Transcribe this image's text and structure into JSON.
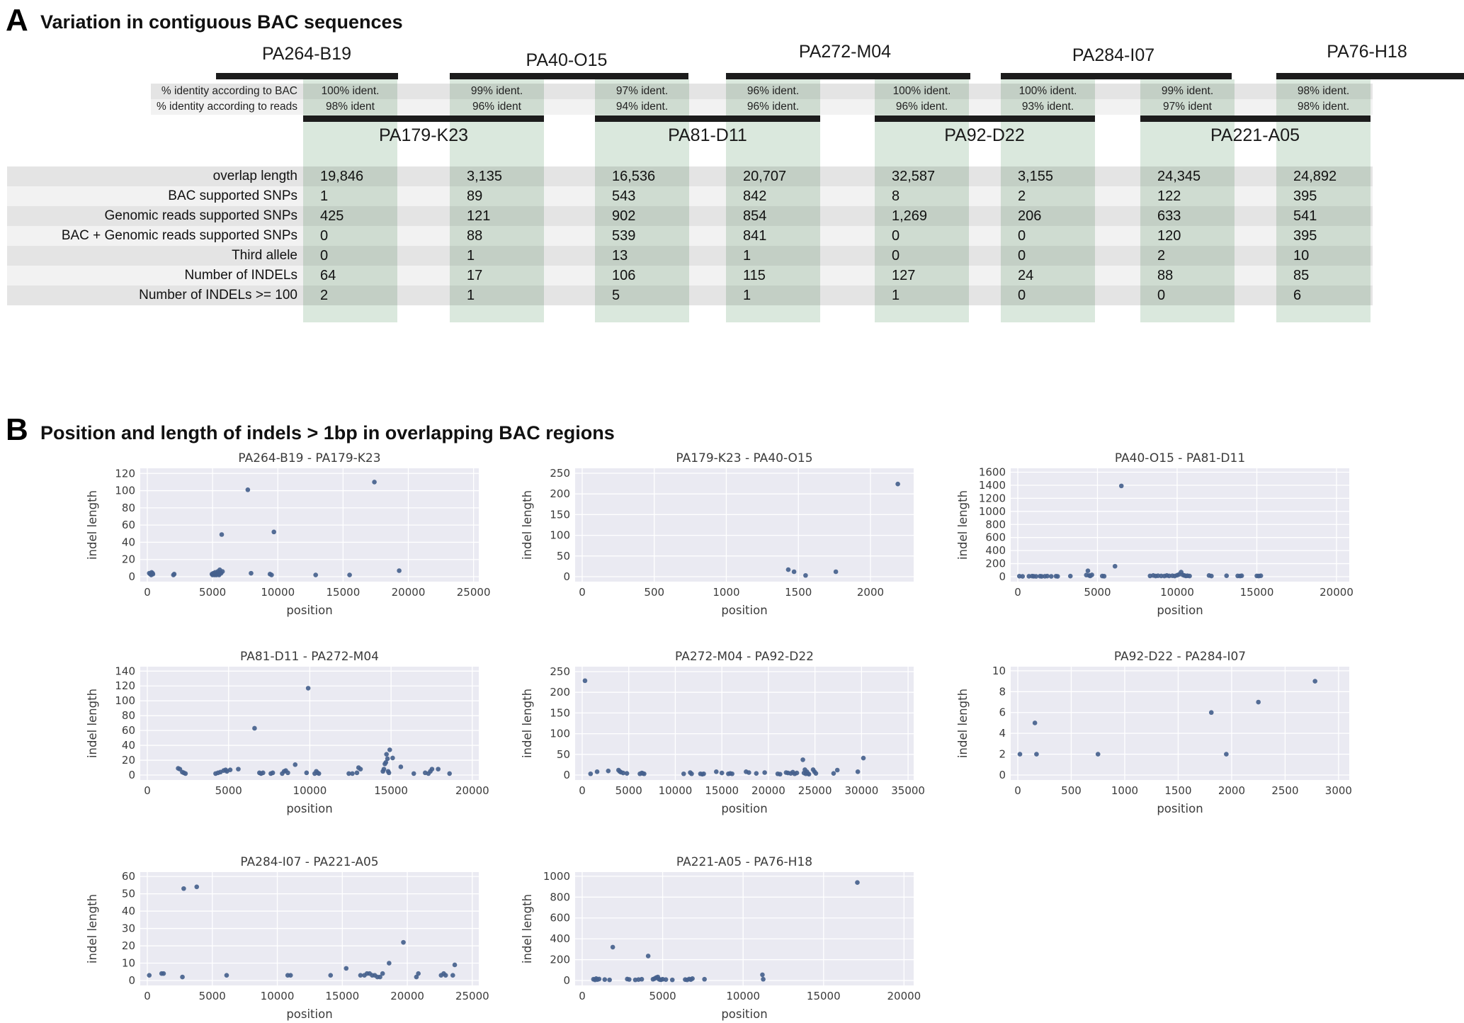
{
  "panelA": {
    "label": "A",
    "title": "Variation in contiguous BAC sequences",
    "top_bacs": [
      "PA264-B19",
      "PA40-O15",
      "PA272-M04",
      "PA284-I07",
      "PA76-H18"
    ],
    "bottom_bacs": [
      "PA179-K23",
      "PA81-D11",
      "PA92-D22",
      "PA221-A05"
    ],
    "identity_rows": [
      {
        "label": "% identity according to BAC",
        "values": [
          "100% ident.",
          "99% ident.",
          "97% ident.",
          "96% ident.",
          "100% ident.",
          "100% ident.",
          "99% ident.",
          "98% ident."
        ]
      },
      {
        "label": "% identity according to reads",
        "values": [
          "98% ident",
          "96% ident",
          "94% ident.",
          "96% ident.",
          "96% ident.",
          "93% ident.",
          "97% ident",
          "98% ident."
        ]
      }
    ],
    "data_rows": [
      {
        "label": "overlap length",
        "values": [
          "19,846",
          "3,135",
          "16,536",
          "20,707",
          "32,587",
          "3,155",
          "24,345",
          "24,892"
        ]
      },
      {
        "label": "BAC supported SNPs",
        "values": [
          "1",
          "89",
          "543",
          "842",
          "8",
          "2",
          "122",
          "395"
        ]
      },
      {
        "label": "Genomic reads supported SNPs",
        "values": [
          "425",
          "121",
          "902",
          "854",
          "1,269",
          "206",
          "633",
          "541"
        ]
      },
      {
        "label": "BAC + Genomic reads supported SNPs",
        "values": [
          "0",
          "88",
          "539",
          "841",
          "0",
          "0",
          "120",
          "395"
        ]
      },
      {
        "label": "Third allele",
        "values": [
          "0",
          "1",
          "13",
          "1",
          "0",
          "0",
          "2",
          "10"
        ]
      },
      {
        "label": "Number of INDELs",
        "values": [
          "64",
          "17",
          "106",
          "115",
          "127",
          "24",
          "88",
          "85"
        ]
      },
      {
        "label": "Number of INDELs >= 100",
        "values": [
          "2",
          "1",
          "5",
          "1",
          "1",
          "0",
          "0",
          "6"
        ]
      }
    ],
    "colors": {
      "bar": "#1c1c1c",
      "band_dark": "#e4e4e4",
      "band_light": "#f2f2f2",
      "overlap_green": "#dfeae0"
    }
  },
  "panelB": {
    "label": "B",
    "title": "Position and length of indels > 1bp in overlapping BAC regions",
    "style": {
      "plot_bg": "#eaeaf2",
      "grid": "#ffffff",
      "point": "#45618d",
      "text": "#3b3b3b"
    }
  },
  "chart_data": [
    {
      "type": "scatter",
      "title": "PA264-B19 - PA179-K23",
      "xlabel": "position",
      "ylabel": "indel length",
      "xticks": [
        0,
        5000,
        10000,
        15000,
        20000,
        25000
      ],
      "yticks": [
        0,
        20,
        40,
        60,
        80,
        100,
        120
      ],
      "xmax": 25400,
      "ymax": 126,
      "points": [
        [
          150,
          4
        ],
        [
          230,
          3
        ],
        [
          300,
          2
        ],
        [
          330,
          5
        ],
        [
          400,
          4
        ],
        [
          430,
          3
        ],
        [
          2000,
          2
        ],
        [
          2060,
          3
        ],
        [
          4950,
          3
        ],
        [
          5000,
          2
        ],
        [
          5060,
          4
        ],
        [
          5100,
          3
        ],
        [
          5160,
          2
        ],
        [
          5200,
          5
        ],
        [
          5260,
          3
        ],
        [
          5300,
          2
        ],
        [
          5360,
          4
        ],
        [
          5400,
          6
        ],
        [
          5460,
          3
        ],
        [
          5500,
          2
        ],
        [
          5550,
          8
        ],
        [
          5600,
          5
        ],
        [
          5650,
          4
        ],
        [
          5700,
          49
        ],
        [
          5760,
          6
        ],
        [
          7700,
          101
        ],
        [
          7950,
          4
        ],
        [
          9400,
          3
        ],
        [
          9520,
          2
        ],
        [
          9700,
          52
        ],
        [
          12900,
          2
        ],
        [
          15500,
          2
        ],
        [
          17400,
          110
        ],
        [
          19300,
          7
        ]
      ]
    },
    {
      "type": "scatter",
      "title": "PA179-K23 - PA40-O15",
      "xlabel": "position",
      "ylabel": "indel length",
      "xticks": [
        0,
        500,
        1000,
        1500,
        2000
      ],
      "yticks": [
        0,
        50,
        100,
        150,
        200,
        250
      ],
      "xmax": 2300,
      "ymax": 262,
      "points": [
        [
          1430,
          17
        ],
        [
          1470,
          12
        ],
        [
          1550,
          3
        ],
        [
          1760,
          12
        ],
        [
          2190,
          224
        ]
      ]
    },
    {
      "type": "scatter",
      "title": "PA40-O15 - PA81-D11",
      "xlabel": "position",
      "ylabel": "indel length",
      "xticks": [
        0,
        5000,
        10000,
        15000,
        20000
      ],
      "yticks": [
        0,
        200,
        400,
        600,
        800,
        1000,
        1200,
        1400,
        1600
      ],
      "xmax": 20800,
      "ymax": 1660,
      "points": [
        [
          100,
          8
        ],
        [
          300,
          5
        ],
        [
          700,
          6
        ],
        [
          900,
          9
        ],
        [
          1000,
          6
        ],
        [
          1150,
          5
        ],
        [
          1400,
          8
        ],
        [
          1500,
          5
        ],
        [
          1700,
          6
        ],
        [
          1850,
          9
        ],
        [
          2100,
          5
        ],
        [
          2400,
          8
        ],
        [
          2500,
          5
        ],
        [
          3300,
          9
        ],
        [
          4300,
          25
        ],
        [
          4400,
          90
        ],
        [
          4480,
          18
        ],
        [
          4550,
          12
        ],
        [
          4650,
          28
        ],
        [
          5300,
          10
        ],
        [
          5420,
          7
        ],
        [
          6100,
          160
        ],
        [
          6500,
          1390
        ],
        [
          8300,
          12
        ],
        [
          8500,
          18
        ],
        [
          8650,
          10
        ],
        [
          8800,
          14
        ],
        [
          9000,
          12
        ],
        [
          9200,
          10
        ],
        [
          9350,
          18
        ],
        [
          9500,
          12
        ],
        [
          9700,
          14
        ],
        [
          9850,
          10
        ],
        [
          10000,
          22
        ],
        [
          10120,
          35
        ],
        [
          10250,
          70
        ],
        [
          10350,
          28
        ],
        [
          10450,
          18
        ],
        [
          10550,
          12
        ],
        [
          10650,
          14
        ],
        [
          10780,
          10
        ],
        [
          12000,
          18
        ],
        [
          12150,
          10
        ],
        [
          13100,
          14
        ],
        [
          13800,
          12
        ],
        [
          13950,
          10
        ],
        [
          14050,
          14
        ],
        [
          15000,
          12
        ],
        [
          15120,
          10
        ],
        [
          15250,
          14
        ]
      ]
    },
    {
      "type": "scatter",
      "title": "PA81-D11 - PA272-M04",
      "xlabel": "position",
      "ylabel": "indel length",
      "xticks": [
        0,
        5000,
        10000,
        15000,
        20000
      ],
      "yticks": [
        0,
        20,
        40,
        60,
        80,
        100,
        120,
        140
      ],
      "xmax": 20400,
      "ymax": 146,
      "points": [
        [
          1900,
          9
        ],
        [
          2000,
          8
        ],
        [
          2150,
          4
        ],
        [
          2250,
          3
        ],
        [
          2350,
          2
        ],
        [
          4200,
          2
        ],
        [
          4350,
          3
        ],
        [
          4500,
          4
        ],
        [
          4700,
          6
        ],
        [
          4820,
          7
        ],
        [
          4900,
          5
        ],
        [
          5100,
          7
        ],
        [
          5600,
          8
        ],
        [
          6600,
          63
        ],
        [
          6900,
          3
        ],
        [
          7000,
          2
        ],
        [
          7120,
          3
        ],
        [
          7600,
          2
        ],
        [
          7720,
          3
        ],
        [
          8300,
          2
        ],
        [
          8420,
          5
        ],
        [
          8520,
          6
        ],
        [
          8650,
          3
        ],
        [
          9100,
          14
        ],
        [
          9800,
          3
        ],
        [
          9900,
          117
        ],
        [
          10300,
          2
        ],
        [
          10400,
          5
        ],
        [
          10480,
          3
        ],
        [
          10560,
          2
        ],
        [
          12400,
          2
        ],
        [
          12620,
          2
        ],
        [
          12900,
          3
        ],
        [
          13000,
          10
        ],
        [
          13120,
          8
        ],
        [
          14500,
          5
        ],
        [
          14560,
          8
        ],
        [
          14620,
          15
        ],
        [
          14680,
          17
        ],
        [
          14720,
          28
        ],
        [
          14780,
          22
        ],
        [
          14820,
          5
        ],
        [
          14870,
          3
        ],
        [
          14920,
          34
        ],
        [
          15100,
          23
        ],
        [
          15600,
          11
        ],
        [
          16400,
          2
        ],
        [
          17100,
          3
        ],
        [
          17300,
          2
        ],
        [
          17420,
          5
        ],
        [
          17520,
          8
        ],
        [
          17900,
          8
        ],
        [
          18600,
          2
        ]
      ]
    },
    {
      "type": "scatter",
      "title": "PA272-M04 - PA92-D22",
      "xlabel": "position",
      "ylabel": "indel length",
      "xticks": [
        0,
        5000,
        10000,
        15000,
        20000,
        25000,
        30000,
        35000
      ],
      "yticks": [
        0,
        50,
        100,
        150,
        200,
        250
      ],
      "xmax": 35600,
      "ymax": 262,
      "points": [
        [
          300,
          228
        ],
        [
          900,
          3
        ],
        [
          1600,
          8
        ],
        [
          2800,
          10
        ],
        [
          3900,
          12
        ],
        [
          4020,
          9
        ],
        [
          4150,
          7
        ],
        [
          4400,
          5
        ],
        [
          4800,
          4
        ],
        [
          6200,
          3
        ],
        [
          6400,
          5
        ],
        [
          6520,
          4
        ],
        [
          6650,
          3
        ],
        [
          10900,
          3
        ],
        [
          11600,
          6
        ],
        [
          11750,
          3
        ],
        [
          12700,
          3
        ],
        [
          12900,
          2
        ],
        [
          13050,
          3
        ],
        [
          14400,
          8
        ],
        [
          15000,
          5
        ],
        [
          15700,
          3
        ],
        [
          15900,
          4
        ],
        [
          16100,
          3
        ],
        [
          17600,
          8
        ],
        [
          17900,
          6
        ],
        [
          18700,
          4
        ],
        [
          19600,
          6
        ],
        [
          21000,
          3
        ],
        [
          21250,
          2
        ],
        [
          21900,
          6
        ],
        [
          22100,
          5
        ],
        [
          22400,
          4
        ],
        [
          22620,
          7
        ],
        [
          22820,
          3
        ],
        [
          23050,
          5
        ],
        [
          23700,
          37
        ],
        [
          23820,
          5
        ],
        [
          23920,
          13
        ],
        [
          24020,
          3
        ],
        [
          24130,
          8
        ],
        [
          24240,
          4
        ],
        [
          24350,
          2
        ],
        [
          24800,
          13
        ],
        [
          24950,
          8
        ],
        [
          25100,
          4
        ],
        [
          27000,
          4
        ],
        [
          27400,
          12
        ],
        [
          29600,
          8
        ],
        [
          30200,
          41
        ]
      ]
    },
    {
      "type": "scatter",
      "title": "PA92-D22 - PA284-I07",
      "xlabel": "position",
      "ylabel": "indel length",
      "xticks": [
        0,
        500,
        1000,
        1500,
        2000,
        2500,
        3000
      ],
      "yticks": [
        0,
        2,
        4,
        6,
        8,
        10
      ],
      "xmax": 3100,
      "ymax": 10.4,
      "points": [
        [
          20,
          2
        ],
        [
          160,
          5
        ],
        [
          175,
          2
        ],
        [
          750,
          2
        ],
        [
          1810,
          6
        ],
        [
          1950,
          2
        ],
        [
          2250,
          7
        ],
        [
          2780,
          9
        ]
      ]
    },
    {
      "type": "scatter",
      "title": "PA284-I07 - PA221-A05",
      "xlabel": "position",
      "ylabel": "indel length",
      "xticks": [
        0,
        5000,
        10000,
        15000,
        20000,
        25000
      ],
      "yticks": [
        0,
        10,
        20,
        30,
        40,
        50,
        60
      ],
      "xmax": 25500,
      "ymax": 62.5,
      "points": [
        [
          150,
          3
        ],
        [
          1100,
          4
        ],
        [
          1250,
          4
        ],
        [
          2700,
          2
        ],
        [
          2800,
          53
        ],
        [
          3800,
          54
        ],
        [
          6100,
          3
        ],
        [
          10800,
          3
        ],
        [
          11020,
          3
        ],
        [
          14100,
          3
        ],
        [
          15300,
          7
        ],
        [
          16400,
          3
        ],
        [
          16700,
          3
        ],
        [
          16900,
          4
        ],
        [
          17100,
          4
        ],
        [
          17300,
          3
        ],
        [
          17500,
          3
        ],
        [
          17700,
          2
        ],
        [
          17900,
          2
        ],
        [
          18100,
          4
        ],
        [
          18600,
          10
        ],
        [
          19700,
          22
        ],
        [
          20700,
          2
        ],
        [
          20850,
          4
        ],
        [
          22600,
          3
        ],
        [
          22800,
          4
        ],
        [
          22950,
          3
        ],
        [
          23500,
          3
        ],
        [
          23650,
          9
        ]
      ]
    },
    {
      "type": "scatter",
      "title": "PA221-A05 - PA76-H18",
      "xlabel": "position",
      "ylabel": "indel length",
      "xticks": [
        0,
        5000,
        10000,
        15000,
        20000
      ],
      "yticks": [
        0,
        200,
        400,
        600,
        800,
        1000
      ],
      "xmax": 20600,
      "ymax": 1040,
      "points": [
        [
          700,
          12
        ],
        [
          800,
          6
        ],
        [
          870,
          18
        ],
        [
          950,
          9
        ],
        [
          1050,
          14
        ],
        [
          1400,
          9
        ],
        [
          1700,
          6
        ],
        [
          1900,
          320
        ],
        [
          2800,
          14
        ],
        [
          2920,
          10
        ],
        [
          3300,
          6
        ],
        [
          3500,
          9
        ],
        [
          3700,
          12
        ],
        [
          4100,
          235
        ],
        [
          4400,
          12
        ],
        [
          4500,
          18
        ],
        [
          4600,
          28
        ],
        [
          4700,
          34
        ],
        [
          4760,
          14
        ],
        [
          4820,
          9
        ],
        [
          4900,
          7
        ],
        [
          5000,
          12
        ],
        [
          5200,
          9
        ],
        [
          5600,
          6
        ],
        [
          6400,
          9
        ],
        [
          6520,
          6
        ],
        [
          6650,
          14
        ],
        [
          6750,
          9
        ],
        [
          6850,
          18
        ],
        [
          7600,
          12
        ],
        [
          11200,
          55
        ],
        [
          11250,
          12
        ],
        [
          17100,
          940
        ]
      ]
    }
  ]
}
